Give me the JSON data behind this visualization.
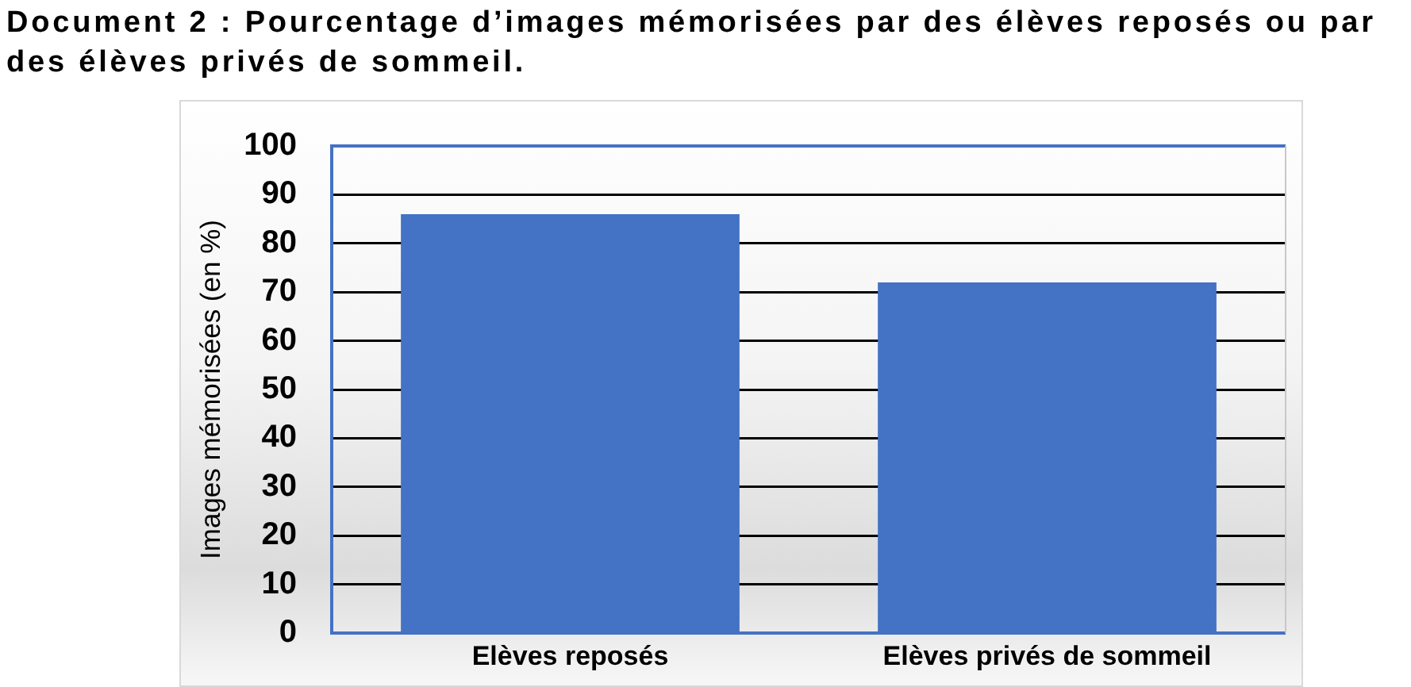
{
  "chart_data": {
    "type": "bar",
    "title": "Document 2 : Pourcentage d’images mémorisées par des élèves reposés ou par des élèves privés de sommeil.",
    "ylabel": "Images mémorisées (en %)",
    "categories": [
      "Elèves reposés",
      "Elèves privés de sommeil"
    ],
    "values": [
      86,
      72
    ],
    "color": "#4472c4",
    "ylim": [
      0,
      100
    ],
    "yticks": [
      0,
      10,
      20,
      30,
      40,
      50,
      60,
      70,
      80,
      90,
      100
    ],
    "grid": "y"
  }
}
